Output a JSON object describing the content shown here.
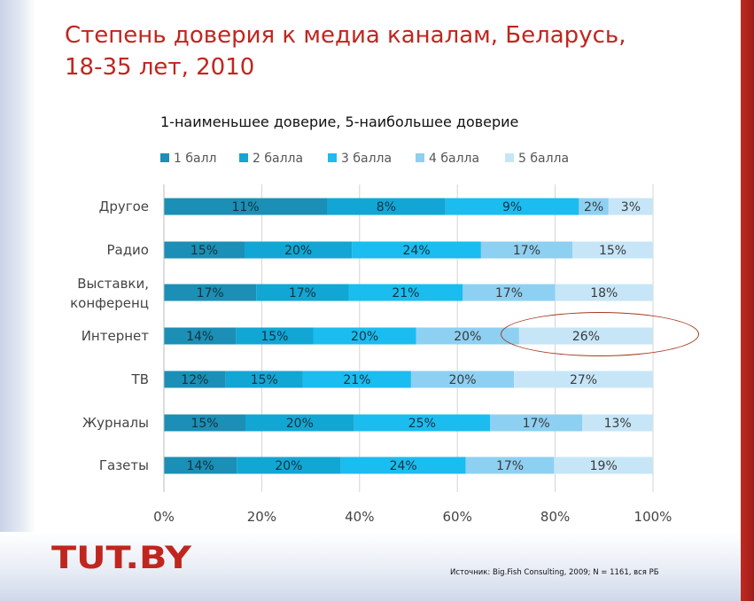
{
  "slide": {
    "title_line1": "Степень доверия к медиа каналам, Беларусь,",
    "title_line2": "18-35 лет, 2010",
    "logo_text": "TUT.BY",
    "source": "Источник: Big.Fish Consulting, 2009; N = 1161, вся РБ"
  },
  "chart_data": {
    "type": "bar",
    "orientation": "horizontal",
    "stacked": "100%",
    "title": "1-наименьшее доверие, 5-наибольшее доверие",
    "categories": [
      "Другое",
      "Радио",
      "Выставки,\nконференц",
      "Интернет",
      "ТВ",
      "Журналы",
      "Газеты"
    ],
    "series": [
      {
        "name": "1 балл",
        "color": "#1b8fb5",
        "values": [
          11,
          15,
          17,
          14,
          12,
          15,
          14
        ]
      },
      {
        "name": "2 балла",
        "color": "#12a6d4",
        "values": [
          8,
          20,
          17,
          15,
          15,
          20,
          20
        ]
      },
      {
        "name": "3 балла",
        "color": "#1bbcef",
        "values": [
          9,
          24,
          21,
          20,
          21,
          25,
          24
        ]
      },
      {
        "name": "4 балла",
        "color": "#8ed0f2",
        "values": [
          2,
          17,
          17,
          20,
          20,
          17,
          17
        ]
      },
      {
        "name": "5 балла",
        "color": "#c6e6f8",
        "values": [
          3,
          15,
          18,
          26,
          27,
          13,
          19
        ]
      }
    ],
    "x_ticks": [
      "0%",
      "20%",
      "40%",
      "60%",
      "80%",
      "100%"
    ],
    "xlim": [
      0,
      100
    ],
    "grid": true,
    "legend_position": "top",
    "highlight": {
      "category": "Интернет",
      "series": "5 балла",
      "shape": "ellipse"
    }
  }
}
